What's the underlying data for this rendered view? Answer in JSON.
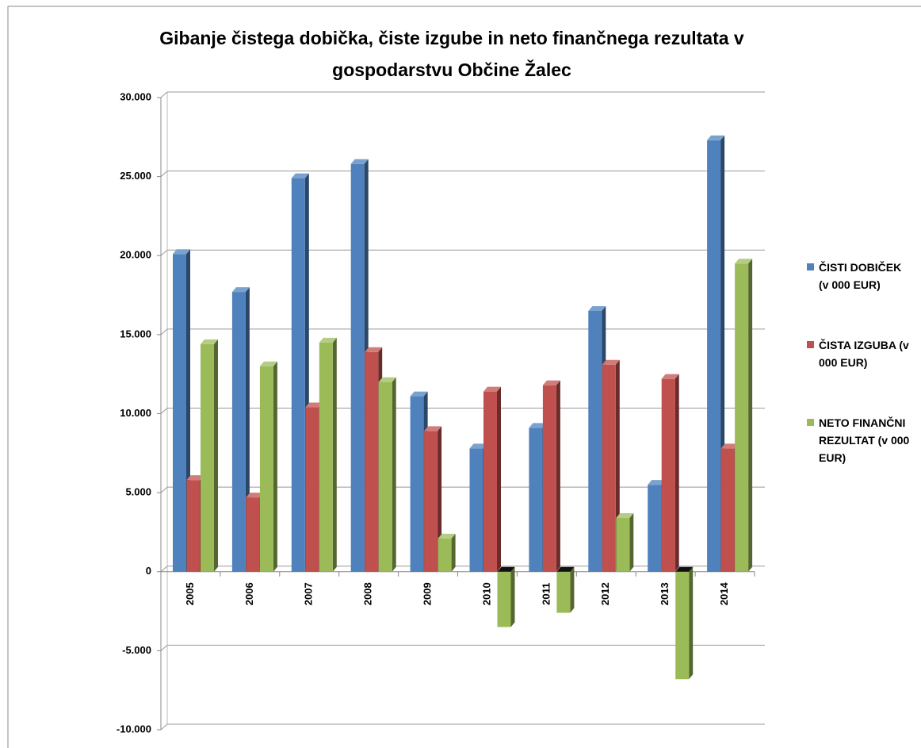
{
  "chart_data": {
    "type": "bar3d",
    "title": "Gibanje čistega dobička, čiste izgube in neto finančnega rezultata v gospodarstvu Občine Žalec",
    "categories": [
      "2005",
      "2006",
      "2007",
      "2008",
      "2009",
      "2010",
      "2011",
      "2012",
      "2013",
      "2014"
    ],
    "series": [
      {
        "name": "ČISTI DOBIČEK (v 000 EUR)",
        "color": "#4f81bd",
        "values": [
          20100,
          17700,
          24900,
          25800,
          11100,
          7800,
          9100,
          16500,
          5500,
          27300
        ]
      },
      {
        "name": "ČISTA IZGUBA (v 000 EUR)",
        "color": "#c0504d",
        "values": [
          5800,
          4700,
          10400,
          13900,
          8900,
          11400,
          11800,
          13100,
          12200,
          7800
        ]
      },
      {
        "name": "NETO FINANČNI REZULTAT   (v 000 EUR)",
        "color": "#9bbb59",
        "values": [
          14400,
          13000,
          14500,
          12000,
          2100,
          -3500,
          -2600,
          3400,
          -6800,
          19500
        ]
      }
    ],
    "ylim": [
      -10000,
      30000
    ],
    "yticks": [
      {
        "value": -10000,
        "label": "-10.000"
      },
      {
        "value": -5000,
        "label": "-5.000"
      },
      0,
      {
        "value": 5000,
        "label": "5.000"
      },
      {
        "value": 10000,
        "label": "10.000"
      },
      {
        "value": 15000,
        "label": "15.000"
      },
      {
        "value": 20000,
        "label": "20.000"
      },
      {
        "value": 25000,
        "label": "25.000"
      },
      {
        "value": 30000,
        "label": "30.000"
      }
    ],
    "grid": true,
    "legend": "right"
  }
}
